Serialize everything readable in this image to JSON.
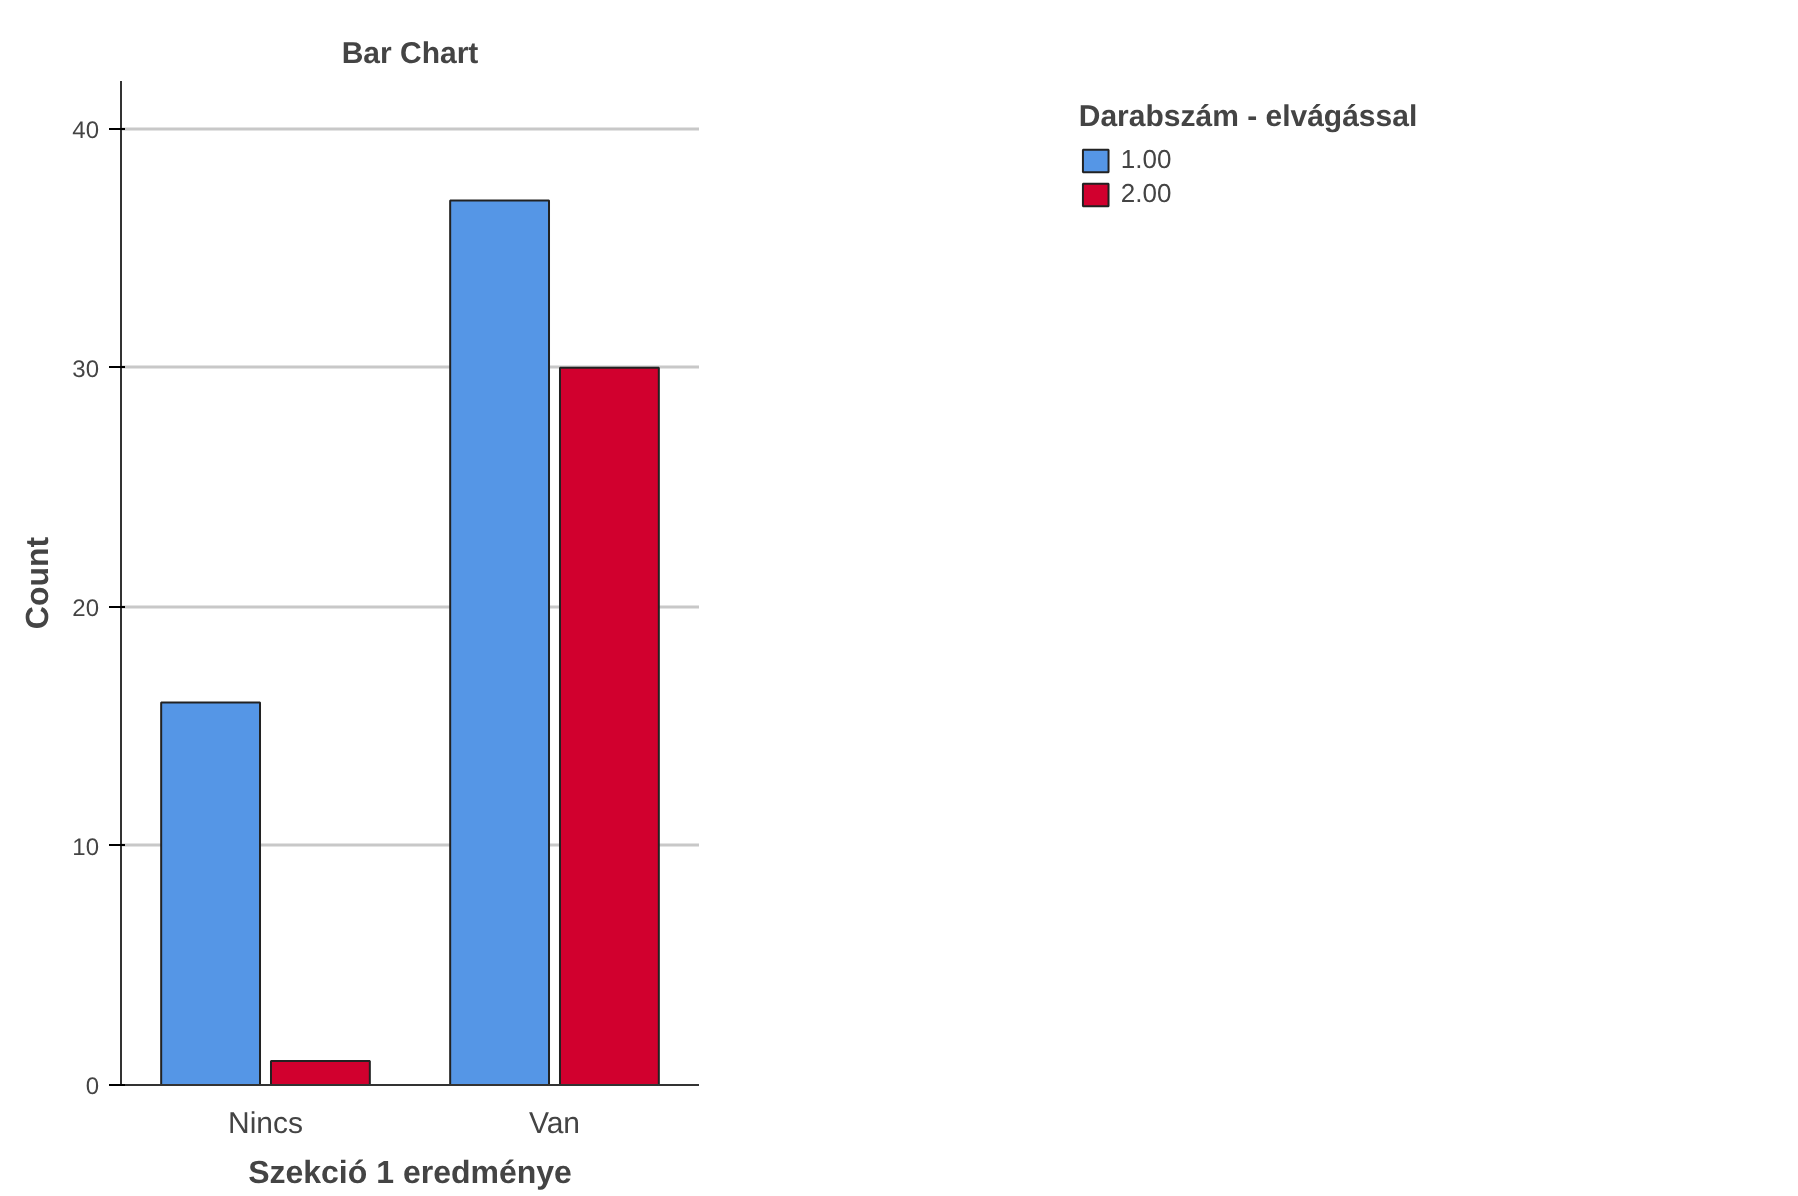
{
  "chart_data": {
    "type": "bar",
    "title": "Bar Chart",
    "xlabel": "Szekció 1 eredménye",
    "ylabel": "Count",
    "categories": [
      "Nincs",
      "Van"
    ],
    "series": [
      {
        "name": "1.00",
        "color": "#5596e6",
        "values": [
          16,
          37
        ]
      },
      {
        "name": "2.00",
        "color": "#d1002e",
        "values": [
          1,
          30
        ]
      }
    ],
    "legend_title": "Darabszám - elvágással",
    "legend": "top right",
    "ylim": [
      0,
      42
    ],
    "yticks": [
      0,
      10,
      20,
      30,
      40
    ],
    "grid": "y"
  }
}
